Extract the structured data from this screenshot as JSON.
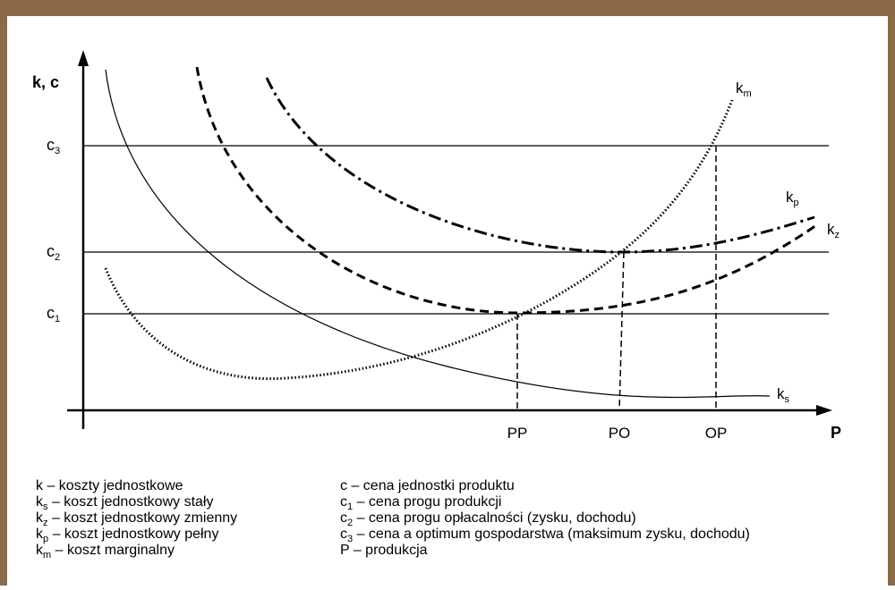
{
  "axes": {
    "y_label": "k, c",
    "x_label": "P"
  },
  "price_levels": [
    {
      "symbol": "c",
      "sub": "3"
    },
    {
      "symbol": "c",
      "sub": "2"
    },
    {
      "symbol": "c",
      "sub": "1"
    }
  ],
  "thresholds": [
    "PP",
    "PO",
    "OP"
  ],
  "curves": [
    {
      "symbol": "k",
      "sub": "m"
    },
    {
      "symbol": "k",
      "sub": "p"
    },
    {
      "symbol": "k",
      "sub": "z"
    },
    {
      "symbol": "k",
      "sub": "s"
    }
  ],
  "legend": {
    "left": [
      {
        "symbol": "k",
        "text": " – koszty jednostkowe"
      },
      {
        "symbol": "k",
        "sub": "s",
        "text": " – koszt jednostkowy stały"
      },
      {
        "symbol": "k",
        "sub": "z",
        "text": " – koszt jednostkowy zmienny"
      },
      {
        "symbol": "k",
        "sub": "p",
        "text": " – koszt jednostkowy pełny"
      },
      {
        "symbol": "k",
        "sub": "m",
        "text": " – koszt marginalny"
      }
    ],
    "right": [
      {
        "symbol": "c",
        "text": " – cena jednostki produktu"
      },
      {
        "symbol": "c",
        "sub": "1",
        "text": " – cena progu produkcji"
      },
      {
        "symbol": "c",
        "sub": "2",
        "text": " – cena progu opłacalności (zysku, dochodu)"
      },
      {
        "symbol": "c",
        "sub": "3",
        "text": " – cena a optimum gospodarstwa (maksimum zysku, dochodu)"
      },
      {
        "symbol": "P",
        "text": "  – produkcja"
      }
    ]
  }
}
